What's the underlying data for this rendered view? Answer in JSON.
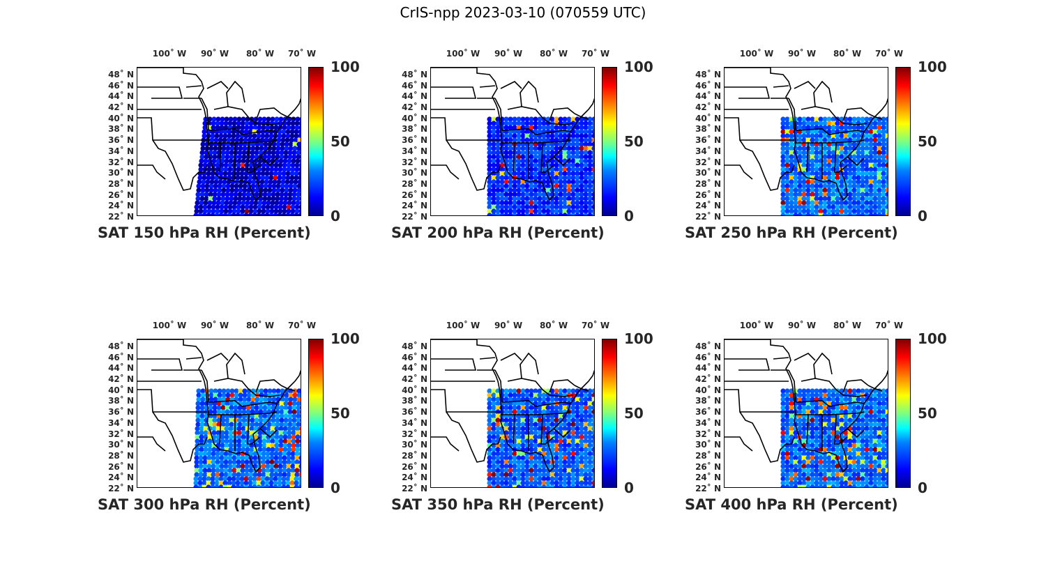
{
  "figure_title": "CrIS-npp 2023-03-10 (070559 UTC)",
  "lon_labels": [
    "100˚ W",
    "90˚ W",
    "80˚ W",
    "70˚ W"
  ],
  "lat_labels": [
    "48˚ N",
    "46˚ N",
    "44˚ N",
    "42˚ N",
    "40˚ N",
    "38˚ N",
    "36˚ N",
    "34˚ N",
    "32˚ N",
    "30˚ N",
    "28˚ N",
    "26˚ N",
    "24˚ N",
    "22˚ N"
  ],
  "colorbar": {
    "ticks": [
      "100",
      "50",
      "0"
    ],
    "range": [
      0,
      100
    ],
    "colormap": "jet"
  },
  "map_extent": {
    "lon": [
      -108,
      -65
    ],
    "lat": [
      22,
      50
    ]
  },
  "panels": [
    {
      "caption": "SAT 150 hPa RH (Percent)",
      "level": "150 hPa",
      "humidity": "very dry"
    },
    {
      "caption": "SAT 200 hPa RH (Percent)",
      "level": "200 hPa",
      "humidity": "dry with moist patches"
    },
    {
      "caption": "SAT 250 hPa RH (Percent)",
      "level": "250 hPa",
      "humidity": "moist patches"
    },
    {
      "caption": "SAT 300 hPa RH (Percent)",
      "level": "300 hPa",
      "humidity": "moist patches"
    },
    {
      "caption": "SAT 350 hPa RH (Percent)",
      "level": "350 hPa",
      "humidity": "moist core"
    },
    {
      "caption": "SAT 400 hPa RH (Percent)",
      "level": "400 hPa",
      "humidity": "moist core"
    }
  ],
  "colors": {
    "high": "#800000",
    "mid": "#ffff00",
    "low": "#00008f"
  }
}
